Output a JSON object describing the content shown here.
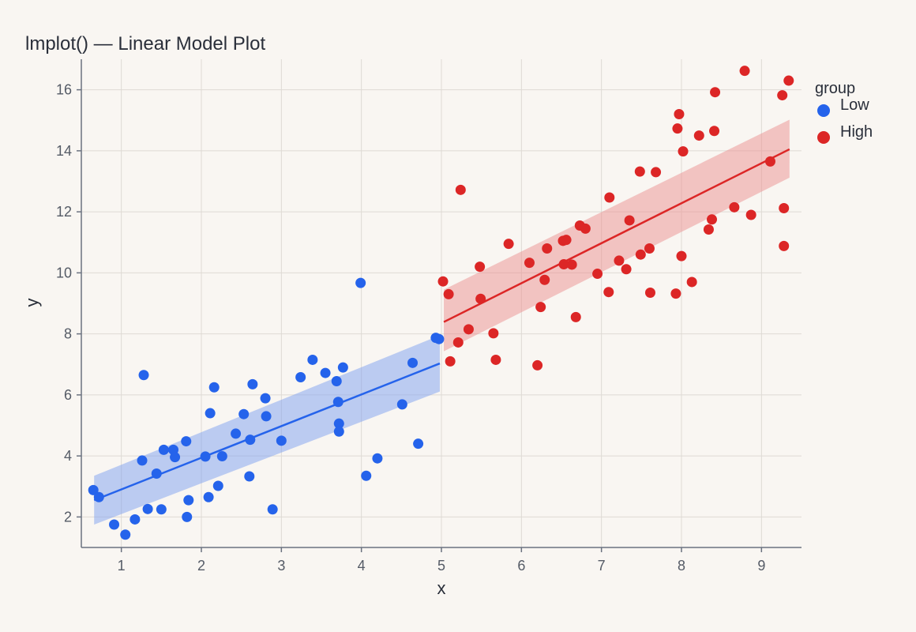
{
  "chart_data": {
    "type": "scatter",
    "title": "lmplot() — Linear Model Plot",
    "xlabel": "x",
    "ylabel": "y",
    "xlim": [
      0.5,
      9.5
    ],
    "ylim": [
      1,
      17
    ],
    "x_ticks": [
      1,
      2,
      3,
      4,
      5,
      6,
      7,
      8,
      9
    ],
    "y_ticks": [
      2,
      4,
      6,
      8,
      10,
      12,
      14,
      16
    ],
    "grid": true,
    "legend": {
      "title": "group",
      "placement": "top-right"
    },
    "series": [
      {
        "name": "Low",
        "color": "#2563eb",
        "band_color": "#7da0ef",
        "fit": {
          "x": [
            0.66,
            4.98
          ],
          "y": [
            2.55,
            7.03
          ]
        },
        "ci": {
          "x": [
            0.66,
            4.98
          ],
          "upper": [
            3.35,
            7.95
          ],
          "lower": [
            1.75,
            6.11
          ]
        },
        "points": [
          [
            0.65,
            2.88
          ],
          [
            0.72,
            2.65
          ],
          [
            0.91,
            1.75
          ],
          [
            1.05,
            1.42
          ],
          [
            1.17,
            1.92
          ],
          [
            1.26,
            3.85
          ],
          [
            1.28,
            6.65
          ],
          [
            1.33,
            2.26
          ],
          [
            1.44,
            3.42
          ],
          [
            1.5,
            2.25
          ],
          [
            1.53,
            4.2
          ],
          [
            1.65,
            4.2
          ],
          [
            1.67,
            3.96
          ],
          [
            1.81,
            4.48
          ],
          [
            1.82,
            2.0
          ],
          [
            1.84,
            2.55
          ],
          [
            2.05,
            3.98
          ],
          [
            2.09,
            2.65
          ],
          [
            2.11,
            5.4
          ],
          [
            2.16,
            6.25
          ],
          [
            2.21,
            3.02
          ],
          [
            2.26,
            3.99
          ],
          [
            2.43,
            4.73
          ],
          [
            2.53,
            5.37
          ],
          [
            2.6,
            3.33
          ],
          [
            2.61,
            4.53
          ],
          [
            2.64,
            6.35
          ],
          [
            2.8,
            5.89
          ],
          [
            2.81,
            5.3
          ],
          [
            2.89,
            2.25
          ],
          [
            3.0,
            4.5
          ],
          [
            3.24,
            6.58
          ],
          [
            3.39,
            7.15
          ],
          [
            3.55,
            6.72
          ],
          [
            3.69,
            6.45
          ],
          [
            3.71,
            5.77
          ],
          [
            3.72,
            5.06
          ],
          [
            3.72,
            4.8
          ],
          [
            3.77,
            6.9
          ],
          [
            3.99,
            9.67
          ],
          [
            4.06,
            3.35
          ],
          [
            4.2,
            3.92
          ],
          [
            4.51,
            5.69
          ],
          [
            4.64,
            7.05
          ],
          [
            4.71,
            4.4
          ],
          [
            4.93,
            7.87
          ],
          [
            4.97,
            7.83
          ]
        ]
      },
      {
        "name": "High",
        "color": "#dc2626",
        "band_color": "#ec8f8f",
        "fit": {
          "x": [
            5.03,
            9.35
          ],
          "y": [
            8.39,
            14.05
          ]
        },
        "ci": {
          "x": [
            5.03,
            9.35
          ],
          "upper": [
            9.45,
            15.02
          ],
          "lower": [
            7.43,
            13.12
          ]
        },
        "points": [
          [
            5.02,
            9.72
          ],
          [
            5.09,
            9.3
          ],
          [
            5.11,
            7.1
          ],
          [
            5.21,
            7.72
          ],
          [
            5.24,
            12.72
          ],
          [
            5.34,
            8.15
          ],
          [
            5.48,
            10.2
          ],
          [
            5.49,
            9.15
          ],
          [
            5.65,
            8.02
          ],
          [
            5.68,
            7.15
          ],
          [
            5.84,
            10.95
          ],
          [
            6.1,
            10.33
          ],
          [
            6.2,
            6.97
          ],
          [
            6.24,
            8.88
          ],
          [
            6.29,
            9.77
          ],
          [
            6.32,
            10.8
          ],
          [
            6.52,
            11.05
          ],
          [
            6.53,
            10.28
          ],
          [
            6.56,
            11.08
          ],
          [
            6.63,
            10.27
          ],
          [
            6.68,
            8.55
          ],
          [
            6.73,
            11.55
          ],
          [
            6.8,
            11.45
          ],
          [
            6.95,
            9.97
          ],
          [
            7.09,
            9.37
          ],
          [
            7.1,
            12.47
          ],
          [
            7.22,
            10.4
          ],
          [
            7.31,
            10.12
          ],
          [
            7.35,
            11.72
          ],
          [
            7.48,
            13.32
          ],
          [
            7.49,
            10.6
          ],
          [
            7.6,
            10.8
          ],
          [
            7.61,
            9.35
          ],
          [
            7.68,
            13.3
          ],
          [
            7.93,
            9.32
          ],
          [
            7.95,
            14.73
          ],
          [
            7.97,
            15.2
          ],
          [
            8.0,
            10.55
          ],
          [
            8.02,
            13.98
          ],
          [
            8.13,
            9.7
          ],
          [
            8.22,
            14.5
          ],
          [
            8.34,
            11.42
          ],
          [
            8.38,
            11.75
          ],
          [
            8.41,
            14.65
          ],
          [
            8.42,
            15.92
          ],
          [
            8.66,
            12.15
          ],
          [
            8.79,
            16.62
          ],
          [
            8.87,
            11.9
          ],
          [
            9.11,
            13.65
          ],
          [
            9.26,
            15.82
          ],
          [
            9.28,
            12.12
          ],
          [
            9.28,
            10.88
          ],
          [
            9.34,
            16.3
          ]
        ]
      }
    ]
  }
}
